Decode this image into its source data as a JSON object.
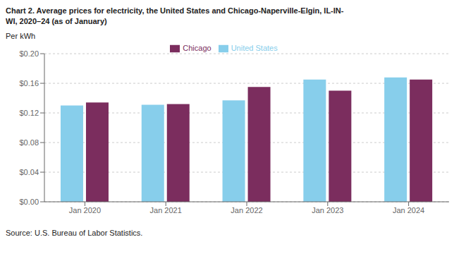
{
  "chart_data": {
    "type": "bar",
    "title": "Chart 2. Average prices for electricity, the United States and Chicago-Naperville-Elgin, IL-IN-\nWI, 2020–24 (as of January)",
    "ylabel": "Per kWh",
    "categories": [
      "Jan 2020",
      "Jan 2021",
      "Jan 2022",
      "Jan 2023",
      "Jan 2024"
    ],
    "series": [
      {
        "name": "United States",
        "color": "#87CEEB",
        "values": [
          0.13,
          0.131,
          0.137,
          0.165,
          0.168
        ]
      },
      {
        "name": "Chicago",
        "color": "#7B2D5E",
        "values": [
          0.134,
          0.132,
          0.155,
          0.15,
          0.165
        ]
      }
    ],
    "ylim": [
      0,
      0.2
    ],
    "yticks": [
      {
        "value": 0.0,
        "label": "$0.00"
      },
      {
        "value": 0.04,
        "label": "$0.04"
      },
      {
        "value": 0.08,
        "label": "$0.08"
      },
      {
        "value": 0.12,
        "label": "$0.12"
      },
      {
        "value": 0.16,
        "label": "$0.16"
      },
      {
        "value": 0.2,
        "label": "$0.20"
      }
    ],
    "grid": true,
    "legend": "top",
    "annotations": [
      "Source: U.S. Bureau of Labor Statistics."
    ]
  }
}
